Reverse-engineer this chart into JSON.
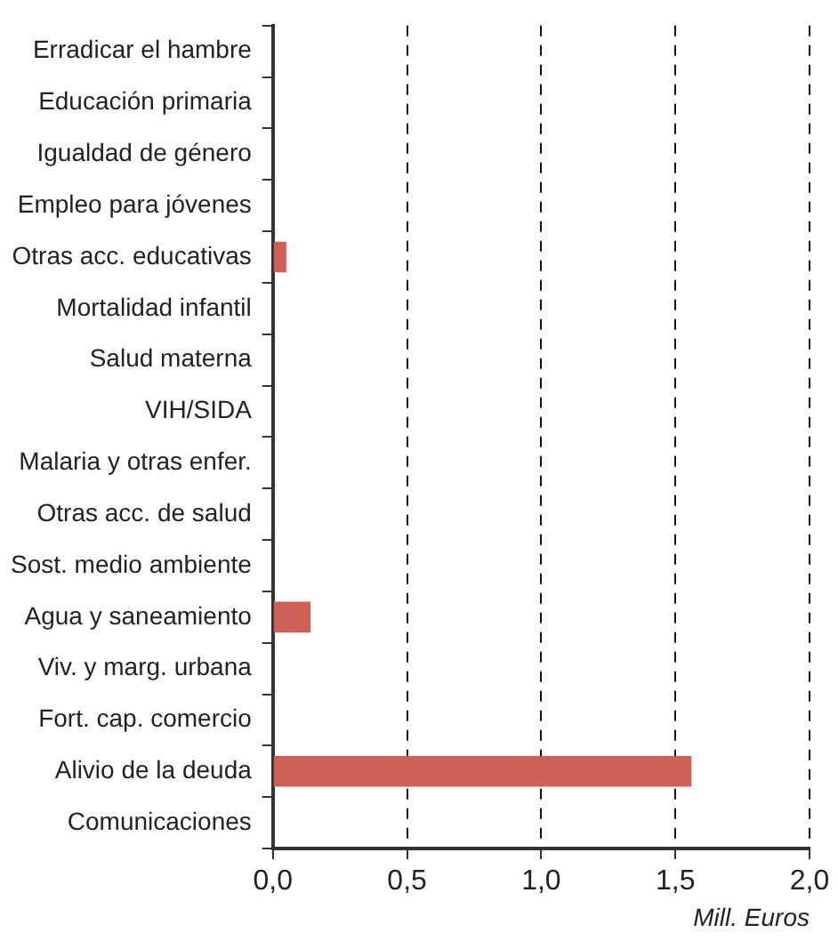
{
  "chart_data": {
    "type": "bar",
    "orientation": "horizontal",
    "xlabel": "Mill. Euros",
    "categories": [
      "Erradicar el hambre",
      "Educación primaria",
      "Igualdad de género",
      "Empleo para jóvenes",
      "Otras acc. educativas",
      "Mortalidad infantil",
      "Salud materna",
      "VIH/SIDA",
      "Malaria y otras enfer.",
      "Otras acc. de salud",
      "Sost. medio ambiente",
      "Agua y saneamiento",
      "Viv. y marg. urbana",
      "Fort. cap. comercio",
      "Alivio de la deuda",
      "Comunicaciones"
    ],
    "values": [
      0,
      0,
      0,
      0,
      0.05,
      0,
      0,
      0,
      0,
      0,
      0,
      0.14,
      0,
      0,
      1.56,
      0
    ],
    "color": "#cd6155",
    "xlim": [
      0,
      2
    ],
    "xticks": [
      {
        "value": 0,
        "label": "0,0"
      },
      {
        "value": 0.5,
        "label": "0,5"
      },
      {
        "value": 1,
        "label": "1,0"
      },
      {
        "value": 1.5,
        "label": "1,5"
      },
      {
        "value": 2,
        "label": "2,0"
      }
    ],
    "grid": "x",
    "line_style": "dashed",
    "legend": false
  }
}
